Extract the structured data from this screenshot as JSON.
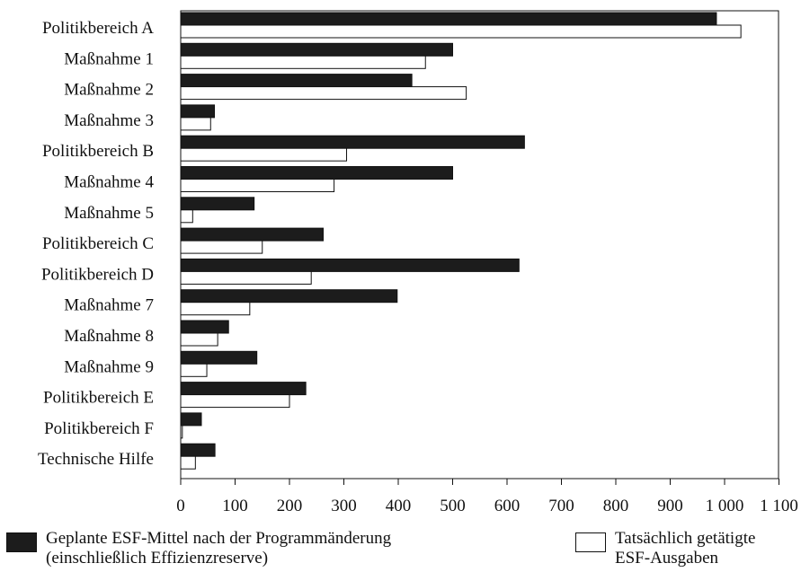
{
  "chart_data": {
    "type": "bar",
    "orientation": "horizontal",
    "categories": [
      "Politikbereich A",
      "Maßnahme 1",
      "Maßnahme 2",
      "Maßnahme 3",
      "Politikbereich B",
      "Maßnahme 4",
      "Maßnahme 5",
      "Politikbereich C",
      "Politikbereich D",
      "Maßnahme 7",
      "Maßnahme 8",
      "Maßnahme 9",
      "Politikbereich E",
      "Politikbereich F",
      "Technische Hilfe"
    ],
    "series": [
      {
        "name": "Geplante ESF-Mittel nach der Programmänderung (einschließlich Effizienzreserve)",
        "name_lines": [
          "Geplante ESF-Mittel nach der Programmänderung",
          "(einschließlich Effizienzreserve)"
        ],
        "color": "#1c1c1c",
        "values": [
          985,
          500,
          425,
          62,
          632,
          500,
          135,
          262,
          622,
          398,
          88,
          140,
          230,
          38,
          63
        ]
      },
      {
        "name": "Tatsächlich getätigte ESF-Ausgaben",
        "name_lines": [
          "Tatsächlich getätigte",
          "ESF-Ausgaben"
        ],
        "color": "#ffffff",
        "values": [
          1030,
          450,
          525,
          55,
          305,
          282,
          22,
          150,
          240,
          127,
          68,
          48,
          200,
          3,
          27
        ]
      }
    ],
    "xlim": [
      0,
      1100
    ],
    "xticks": [
      0,
      100,
      200,
      300,
      400,
      500,
      600,
      700,
      800,
      900,
      1000,
      1100
    ],
    "xtick_labels": [
      "0",
      "100",
      "200",
      "300",
      "400",
      "500",
      "600",
      "700",
      "800",
      "900",
      "1 000",
      "1 100"
    ],
    "title": "",
    "xlabel": "",
    "ylabel": "",
    "grid": false,
    "legend_position": "bottom"
  }
}
